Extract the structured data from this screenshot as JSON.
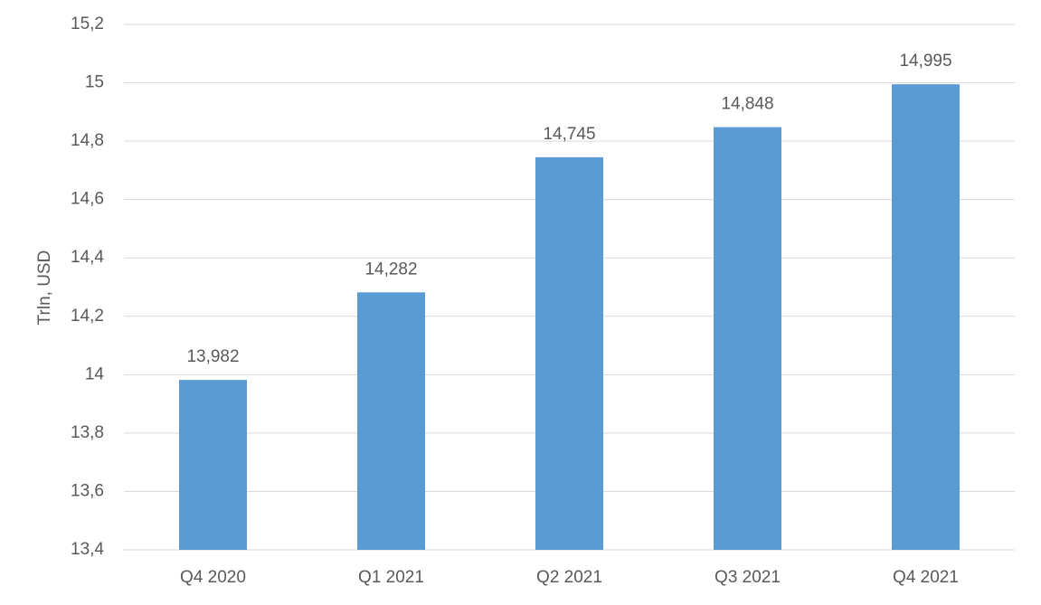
{
  "chart_data": {
    "type": "bar",
    "y_label": "Trln, USD",
    "categories": [
      "Q4 2020",
      "Q1 2021",
      "Q2 2021",
      "Q3 2021",
      "Q4 2021"
    ],
    "values": [
      13.982,
      14.282,
      14.745,
      14.848,
      14.995
    ],
    "value_labels": [
      "13,982",
      "14,282",
      "14,745",
      "14,848",
      "14,995"
    ],
    "color": "#5b9bd5",
    "ylim": [
      13.4,
      15.2
    ],
    "yticks": [
      {
        "value": 13.4,
        "label": "13,4"
      },
      {
        "value": 13.6,
        "label": "13,6"
      },
      {
        "value": 13.8,
        "label": "13,8"
      },
      14,
      {
        "value": 14.2,
        "label": "14,2"
      },
      {
        "value": 14.4,
        "label": "14,4"
      },
      {
        "value": 14.6,
        "label": "14,6"
      },
      {
        "value": 14.8,
        "label": "14,8"
      },
      15,
      {
        "value": 15.2,
        "label": "15,2"
      }
    ],
    "grid": true
  }
}
